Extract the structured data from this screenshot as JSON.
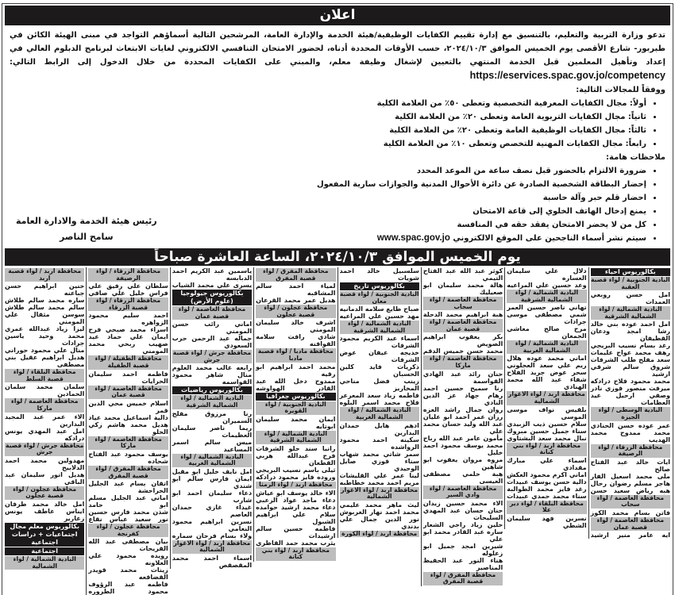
{
  "title": "اعلان",
  "intro": {
    "text": "تدعو وزارة التربية والتعليم، بالتنسيق مع إدارة تقييم الكفايات الوظيفية/هيئة الخدمة والإدارة العامة، المرشحين التالية أسماؤهم التواجد في مبنى الهيئة الكائن في طبربور- شارع الأقصى يوم الخميس الموافق ٢٠٢٤/١٠/٣، حسب الأوقات المحددة أدناه، لحضور الامتحان التنافسي الالكتروني لغايات الابتعاث لبرنامج الدبلوم العالي في إعداد وتأهيل المعلمين قبل الخدمة المنتهي بالتعيين لإشغال وظيفة معلم، والمبني على الكفايات المحددة من خلال الدخول إلى الرابط التالي:",
    "url": "https://eservices.spac.gov.jo/competency",
    "fields_label": "ووفقاً للمجالات التالية:"
  },
  "fields": [
    "أولاً: مجال الكفايات المعرفية التخصصية وتعطى ٥٠٪ من العلامة الكلية",
    "ثانياً: مجال الكفايات التربوية العامة وتعطى ٢٠٪ من العلامة الكلية",
    "ثالثاً: مجال الكفايات الوظيفية العامة وتعطى ٢٠٪ من العلامة الكلية",
    "رابعاً: مجال الكفايات المهنية للتخصص وتعطى ١٠٪ من العلامة الكلية"
  ],
  "notes_label": "ملاحظات هامة:",
  "notes": [
    "ضرورة الالتزام بالحضور قبل نصف ساعة من الموعد المحدد",
    "إحضار البطاقة الشخصية الصادرة عن دائرة الأحوال المدنية والجوازات سارية المفعول",
    "احضار قلم حبر وآلة حاسبة",
    "يمنع إدخال الهاتف الخلوي إلى قاعة الامتحان",
    "كل من لا يحضر الامتحان يفقد حقه في المنافسة"
  ],
  "last_note": {
    "text": "سيتم نشر أسماء الناجحين على الموقع الالكتروني",
    "url": "www.spac.gov.jo"
  },
  "signature": {
    "role": "رئيس هيئة الخدمة والادارة العامة",
    "name": "سامح الناصر"
  },
  "banner": "يوم الخميس الموافق ٢٠٢٤/١٠/٣، الساعة العاشرة صباحاً",
  "columns": [
    [
      {
        "t": "m",
        "v": "بكالوريوس احياء"
      },
      {
        "t": "h",
        "v": "البادية الجنوبية / لواء قصبة العقبة"
      },
      {
        "t": "n",
        "v": "امل حسن روبعي العمدات"
      },
      {
        "t": "h",
        "v": "البادية الشمالية / لواء الشمالية الشرقية"
      },
      {
        "t": "n",
        "v": "امل احمد عوده بني خالد"
      },
      {
        "t": "n",
        "v": "رشا امجد ودعان القطيفان"
      },
      {
        "t": "n",
        "v": "رغد بسام نسيب البريجي"
      },
      {
        "t": "n",
        "v": "رهف محمد عواج عليمات"
      },
      {
        "t": "n",
        "v": "سعد مفلح طلب الشرفات"
      },
      {
        "t": "n",
        "v": "شروق سالم شرقي ارشيد"
      },
      {
        "t": "n",
        "v": "محمد محمود فلاح درادكه"
      },
      {
        "t": "n",
        "v": "ميرفت منصور فوزي نادر"
      },
      {
        "t": "n",
        "v": "وصفي ارحيل عيد العظامات"
      },
      {
        "t": "h",
        "v": "البادية الوسطى / لواء الجيزة"
      },
      {
        "t": "n",
        "v": "عمر عوده حسن الحنادي"
      },
      {
        "t": "n",
        "v": "محمد ممدوح محمد الهديب"
      },
      {
        "t": "h",
        "v": "محافظة الزرقاء / لواء الرصيفة"
      },
      {
        "t": "n",
        "v": "ايات خالد عبد الفتاح صالح"
      },
      {
        "t": "n",
        "v": "ملى محمد اسعيل الفار"
      },
      {
        "t": "n",
        "v": "هاجر مسلم رضوان رحال"
      },
      {
        "t": "n",
        "v": "هبه رياض سعيد حسن"
      },
      {
        "t": "h",
        "v": "محافظة العاصمة / لواء سحاب"
      },
      {
        "t": "n",
        "v": "فاتن بسام محمد الكوز"
      },
      {
        "t": "h",
        "v": "محافظة العاصمة / لواء قصبة عمان"
      },
      {
        "t": "n",
        "v": "ايه عامر منير ارشيد"
      }
    ],
    [
      {
        "t": "n",
        "v": "دلال علي سليمان العساره"
      },
      {
        "t": "n",
        "v": "وعد حسين علي المراعيه"
      },
      {
        "t": "h",
        "v": "البادية الشمالية / لواء الشمالية الشرقية"
      },
      {
        "t": "n",
        "v": "تهاني ناصر حسين العمر"
      },
      {
        "t": "n",
        "v": "شمي مصطفى موسى جرادات"
      },
      {
        "t": "n",
        "v": "مرح صالح معاشي الجمعان"
      },
      {
        "t": "h",
        "v": "البادية الشمالية / لواء الشمالية الغربية"
      },
      {
        "t": "n",
        "v": "اماني محمد عوده هلال"
      },
      {
        "t": "n",
        "v": "ريم علي سعد العجلوني"
      },
      {
        "t": "n",
        "v": "سحر عوض جريد الفلاح"
      },
      {
        "t": "n",
        "v": "شفاء عبد الله محمد الهنادي"
      },
      {
        "t": "h",
        "v": "محافظة اربد / لواء الاغوار الشمالية"
      },
      {
        "t": "n",
        "v": "بلقيس نواف موسى الموسى"
      },
      {
        "t": "n",
        "v": "سلام حسين ذيب الزبيدي"
      },
      {
        "t": "n",
        "v": "سناء جميل حسين مبروك"
      },
      {
        "t": "n",
        "v": "نبال محمد سعد البشتاوي"
      },
      {
        "t": "h",
        "v": "محافظة اربد / لواء بني كنانة"
      },
      {
        "t": "n",
        "v": "اسماء علي مبارك مقدادي"
      },
      {
        "t": "n",
        "v": "اماني اكرم محمود العكش"
      },
      {
        "t": "n",
        "v": "دالية حسن يوسف عبيدات"
      },
      {
        "t": "n",
        "v": "رغد فايز محمد الطوالبة"
      },
      {
        "t": "n",
        "v": "سناء محمد حمدي عبيدات"
      },
      {
        "t": "h",
        "v": "محافظة البلقاء / لواء دير علا"
      },
      {
        "t": "n",
        "v": "نسرين فهد سليمان الشطي"
      }
    ],
    [
      {
        "t": "n",
        "v": "كوثر عبد الله عبد الفتاح التيمي"
      },
      {
        "t": "n",
        "v": "هالة محمد سليمان ابو صعيليك"
      },
      {
        "t": "h",
        "v": "محافظة العاصمة / لواء سحاب"
      },
      {
        "t": "n",
        "v": "هبة ابراهيم محمد الدحلة"
      },
      {
        "t": "h",
        "v": "محافظة العاصمة / لواء قصبة عمان"
      },
      {
        "t": "n",
        "v": "بكر يعقوب ابراهيم الصويص"
      },
      {
        "t": "n",
        "v": "محمد حسن خميس الدقم"
      },
      {
        "t": "h",
        "v": "محافظة العاصمة / لواء ماركا"
      },
      {
        "t": "n",
        "v": "حنان رائد عبد الهادي القواسمة"
      },
      {
        "t": "n",
        "v": "رنا سميح حسين احمد"
      },
      {
        "t": "n",
        "v": "رهام جهاد عز الدين النادي"
      },
      {
        "t": "n",
        "v": "روان جمال راشد العزه"
      },
      {
        "t": "n",
        "v": "رزان عمر احمد ابو عليان"
      },
      {
        "t": "n",
        "v": "عبد الله وليد حسان محمد علي"
      },
      {
        "t": "n",
        "v": "مأمون عامر عبد الله رباح"
      },
      {
        "t": "n",
        "v": "محمد يوسف محمود احمد خليل"
      },
      {
        "t": "n",
        "v": "مروه مروان يعقوب ابو شاهين"
      },
      {
        "t": "n",
        "v": "هبة حلمي مصطفى العيسى"
      },
      {
        "t": "h",
        "v": "محافظة العاصمة / لواء وادي السير"
      },
      {
        "t": "n",
        "v": "الاء محمد حسين زيدان"
      },
      {
        "t": "n",
        "v": "حنان حسان عبد المهدي السليحات"
      },
      {
        "t": "n",
        "v": "حلين زياد راجي الشعار"
      },
      {
        "t": "n",
        "v": "ساره عبد القادر محمد ابو علي"
      },
      {
        "t": "n",
        "v": "شيرين امجد جميل ابو زعلوله"
      },
      {
        "t": "n",
        "v": "هناء النور عبد الحفيظ المناصير"
      },
      {
        "t": "h",
        "v": "محافظة المفرق / لواء قصبة المفرق"
      }
    ],
    [
      {
        "t": "n",
        "v": "سلسبيل خالد احمد شويات"
      },
      {
        "t": "m",
        "v": "بكالوريوس تاريخ"
      },
      {
        "t": "h",
        "v": "البادية الجنوبية / لواء قصبة معان"
      },
      {
        "t": "n",
        "v": "صباح طايع سلامه الدمانيه"
      },
      {
        "t": "n",
        "v": "مهد حسين علي المراعيه"
      },
      {
        "t": "h",
        "v": "البادية الشمالية / لواء الشمالية الشرقية"
      },
      {
        "t": "n",
        "v": "اسماء عبد الكريم محمود الشرفات"
      },
      {
        "t": "n",
        "v": "خديجه عيفان عوض الشرفات"
      },
      {
        "t": "n",
        "v": "ذكريات فايد كلين الحسبان"
      },
      {
        "t": "n",
        "v": "زينب فضل مناحي المخاريز"
      },
      {
        "t": "n",
        "v": "فاطمه زياد سعد المعرعر"
      },
      {
        "t": "n",
        "v": "فلاح محمد اسمر البلوه"
      },
      {
        "t": "h",
        "v": "البادية الشمالية / لواء الشمالية الغربية"
      },
      {
        "t": "n",
        "v": "ادهم هايل حمدان البدارين"
      },
      {
        "t": "n",
        "v": "سكينه احمد محمود الرواشده"
      },
      {
        "t": "n",
        "v": "سمر شاتي محمد شهاب"
      },
      {
        "t": "n",
        "v": "سناء فوزي صايل الوحيدي"
      },
      {
        "t": "n",
        "v": "لينا عمر علي القليشات"
      },
      {
        "t": "n",
        "v": "مريم احمد محمد خطاطبه"
      },
      {
        "t": "h",
        "v": "محافظة اربد / لواء الاغوار الشمالية"
      },
      {
        "t": "n",
        "v": "ليث ماهر محمد عليمي"
      },
      {
        "t": "n",
        "v": "محمد احمد نهار الغربوش"
      },
      {
        "t": "n",
        "v": "نور الدين جمال علي بدندي"
      },
      {
        "t": "h",
        "v": "محافظة اربد / لواء الكورة"
      }
    ],
    [
      {
        "t": "h",
        "v": "محافظة المفرق / لواء قصبة المفرق"
      },
      {
        "t": "n",
        "v": "لمياء احمد سالم المشاقبه"
      },
      {
        "t": "n",
        "v": "هديل عمر محمد القرعان"
      },
      {
        "t": "h",
        "v": "محافظة عجلون / لواء قصبة عجلون"
      },
      {
        "t": "n",
        "v": "اشرف خالد سليمان المومني"
      },
      {
        "t": "n",
        "v": "شادي رافت سلامه القواقنه"
      },
      {
        "t": "h",
        "v": "محافظة مادبا / لواء قصبة مادبا"
      },
      {
        "t": "n",
        "v": "محمد احمد ابراهيم ابو رقيه"
      },
      {
        "t": "n",
        "v": "ممدوح دخل الله عبد القادر الهواوشه"
      },
      {
        "t": "m",
        "v": "بكالوريوس جغرافيا"
      },
      {
        "t": "h",
        "v": "البادية الجنوبية / لواء القويرة"
      },
      {
        "t": "n",
        "v": "ايمان محمد سليمان ابوتايه"
      },
      {
        "t": "h",
        "v": "البادية الشمالية / لواء الشمالية الشرقية"
      },
      {
        "t": "n",
        "v": "رانيا سند حلو الشرفات"
      },
      {
        "t": "n",
        "v": "فرح عبدالله هربي القطعان"
      },
      {
        "t": "n",
        "v": "ثيلى باسم نسيب البريجي"
      },
      {
        "t": "n",
        "v": "وروده فايز محمود درادكه"
      },
      {
        "t": "h",
        "v": "محافظة اربد / لواء الرمثا"
      },
      {
        "t": "n",
        "v": "الاء خالد يوسف ابو عياش"
      },
      {
        "t": "n",
        "v": "دعاء ماجد عواد الزعبي"
      },
      {
        "t": "n",
        "v": "دعاء محمد ارشيد حوامده"
      },
      {
        "t": "n",
        "v": "سلام علي ابراهيم الشبول"
      },
      {
        "t": "n",
        "v": "فاطمه حسين سالم ارشيدات"
      },
      {
        "t": "n",
        "v": "يثرب محمد حمد القاظري"
      },
      {
        "t": "h",
        "v": "محافظة اربد / لواء بني كنانة"
      }
    ],
    [
      {
        "t": "n",
        "v": "ياسمين عبد الكريم احمد الدبابسه"
      },
      {
        "t": "n",
        "v": "يسرى علي محمد الشياب"
      },
      {
        "t": "m",
        "v": "بكالوريوس جيولوجيا (علوم الأرض)"
      },
      {
        "t": "h",
        "v": "محافظة العاصمة / لواء قصبة عمان"
      },
      {
        "t": "n",
        "v": "اماني رائب حسن المومني"
      },
      {
        "t": "n",
        "v": "جماله عبد الرحمن حرب السعودي"
      },
      {
        "t": "h",
        "v": "محافظة جرش / لواء قصبة جرش"
      },
      {
        "t": "n",
        "v": "رابعه غالب محمد العلوم"
      },
      {
        "t": "n",
        "v": "منال شاهر محمود القواسمه"
      },
      {
        "t": "m",
        "v": "بكالوريوس رياضيات"
      },
      {
        "t": "h",
        "v": "البادية الشمالية / لواء الشمالية الشرقية"
      },
      {
        "t": "n",
        "v": "رنا مرزوق مفلح السميران"
      },
      {
        "t": "n",
        "v": "ريما ناصر سليمان العظيمات"
      },
      {
        "t": "n",
        "v": "ميس سالم اسمر المساعيد"
      },
      {
        "t": "h",
        "v": "البادية الشمالية / لواء الشمالية الغربية"
      },
      {
        "t": "n",
        "v": "امل نايف خليل ابو مقبل"
      },
      {
        "t": "n",
        "v": "ايمان فارس سالم ابو شندي"
      },
      {
        "t": "n",
        "v": "دعاء سليمان احمد ابو شارب"
      },
      {
        "t": "n",
        "v": "غيداء غازي حمدان العاصم"
      },
      {
        "t": "n",
        "v": "نسرين ابراهيم محمود النعامي"
      },
      {
        "t": "n",
        "v": "ولاء بسام فرحان سماره"
      },
      {
        "t": "h",
        "v": "محافظة اربد / لواء الاغوار الشمالية"
      },
      {
        "t": "n",
        "v": "اسماء احمد محمد المقصقص"
      }
    ],
    [
      {
        "t": "h",
        "v": "محافظة الزرقاء / لواء الرصيفة"
      },
      {
        "t": "n",
        "v": "سلطان علي رفيق علي"
      },
      {
        "t": "n",
        "v": "فراس خليل علي صافي"
      },
      {
        "t": "h",
        "v": "محافظة الزرقاء / لواء قصبة الزرقاء"
      },
      {
        "t": "n",
        "v": "احمد سليم محمود الزواهره"
      },
      {
        "t": "n",
        "v": "اسراء محمد صبحي فرح"
      },
      {
        "t": "n",
        "v": "ايمان علي حماد عيد"
      },
      {
        "t": "n",
        "v": "صهيب ربحي محمد المومني"
      },
      {
        "t": "h",
        "v": "محافظة الطفيلة / لواء قصبة الطفيلة"
      },
      {
        "t": "n",
        "v": "فاطمه احمد سليمان الحرايات"
      },
      {
        "t": "h",
        "v": "محافظة العاصمة / لواء قصبة عمان"
      },
      {
        "t": "n",
        "v": "اسلام خميس محي الدين قمر"
      },
      {
        "t": "n",
        "v": "دالية اسماعيل محمد عياد"
      },
      {
        "t": "n",
        "v": "هديل محمد هاشم زكي الحلو"
      },
      {
        "t": "h",
        "v": "محافظة العاصمة / لواء ماركا"
      },
      {
        "t": "n",
        "v": "يوسف محمود عبد الفتاح شحاده"
      },
      {
        "t": "h",
        "v": "محافظة المفرق / لواء قصبة المفرق"
      },
      {
        "t": "n",
        "v": "اتقان بسام عبد الجليل الحراحشة"
      },
      {
        "t": "n",
        "v": "اماني عبد الجليل مسلم ابو حامد"
      },
      {
        "t": "n",
        "v": "شذن محمد فارس حسين"
      },
      {
        "t": "n",
        "v": "نور سعيد عباس نقاع"
      },
      {
        "t": "h",
        "v": "محافظة عجلون / لواء كفرنجة"
      },
      {
        "t": "n",
        "v": "بيان مصطفى عبد الله القريحات"
      },
      {
        "t": "n",
        "v": "رويده محمود علي العلاونه"
      },
      {
        "t": "n",
        "v": "زينات محمد قويدر القضاقعه"
      },
      {
        "t": "n",
        "v": "فاطمه عبد الرؤوف محمود الطروره"
      }
    ],
    [
      {
        "t": "h",
        "v": "محافظة اربد / لواء قصبة اربد"
      },
      {
        "t": "n",
        "v": "حنين ابراهيم حسن جباعنه"
      },
      {
        "t": "n",
        "v": "ساره محمد سالم طلاش"
      },
      {
        "t": "n",
        "v": "سالم محمد سالم طلاش"
      },
      {
        "t": "n",
        "v": "سوسن مثقال علي المومني"
      },
      {
        "t": "n",
        "v": "ليزا زياد عبدالله عمري"
      },
      {
        "t": "n",
        "v": "محمد وحيد ياسين جرادات"
      },
      {
        "t": "n",
        "v": "منال علي محمود حوراني"
      },
      {
        "t": "n",
        "v": "هديل ابراهيم عقيل بني مصطفى"
      },
      {
        "t": "h",
        "v": "محافظة البلقاء / لواء قصبة السلط"
      },
      {
        "t": "n",
        "v": "سلمان محمد سلمان الحمادين"
      },
      {
        "t": "h",
        "v": "محافظة العاصمة / لواء ماركا"
      },
      {
        "t": "n",
        "v": "الاء عمر عبد المجيد البدارين"
      },
      {
        "t": "n",
        "v": "امل عبد المهدي يونس درادكه"
      },
      {
        "t": "h",
        "v": "محافظة جرش / لواء قصبة جرش"
      },
      {
        "t": "n",
        "v": "مهدولين محمد احمد الدلابيح"
      },
      {
        "t": "n",
        "v": "هديل انور سليمان عبد الباقي"
      },
      {
        "t": "h",
        "v": "محافظة عجلون / لواء قصبة عجلون"
      },
      {
        "t": "n",
        "v": "امل خالد محمد طرفان"
      },
      {
        "t": "n",
        "v": "ايناس عاطف يونس زعارير"
      },
      {
        "t": "m",
        "v": "بكالوريوس معلم مجال اجتماعيات + دراسات اجتماعية"
      },
      {
        "t": "m",
        "v": "اجتماعية"
      },
      {
        "t": "h",
        "v": "البادية الشمالية / لواء الشمالية"
      }
    ]
  ]
}
